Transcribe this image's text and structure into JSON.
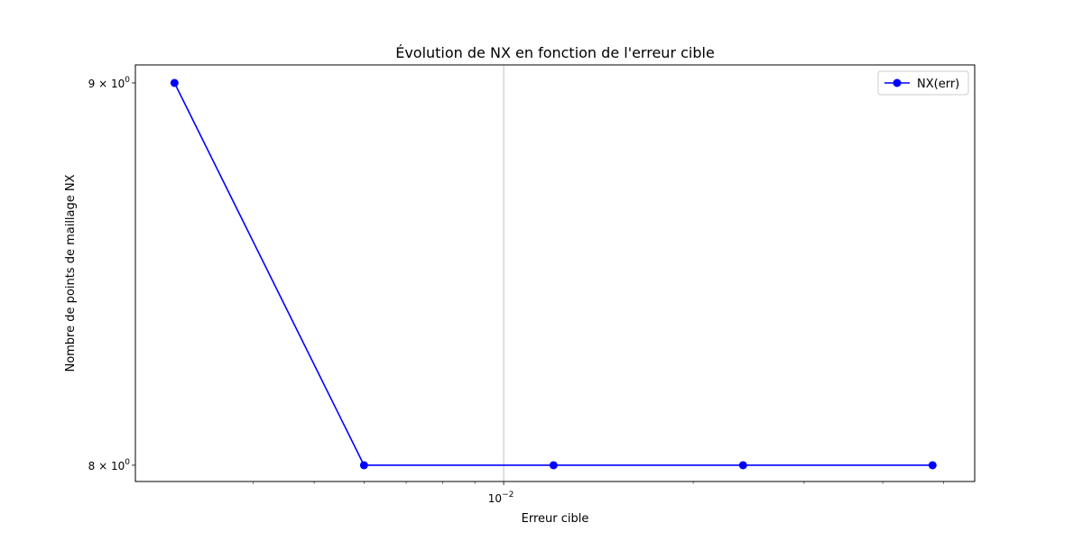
{
  "chart_data": {
    "type": "line",
    "title": "Évolution de NX en fonction de l'erreur cible",
    "xlabel": "Erreur cible",
    "ylabel": "Nombre de points de maillage NX",
    "x_scale": "log",
    "y_scale": "log",
    "xlim": [
      0.0026,
      0.056
    ],
    "ylim": [
      7.96,
      9.05
    ],
    "x_major_ticks": [
      {
        "value": 0.01,
        "label_base": "10",
        "label_exp": "−2"
      }
    ],
    "x_minor_ticks": [
      0.004,
      0.005,
      0.006,
      0.007,
      0.008,
      0.009,
      0.02,
      0.03,
      0.04,
      0.05
    ],
    "y_ticks": [
      {
        "value": 9,
        "label": "9 × 10",
        "label_exp": "0"
      },
      {
        "value": 8,
        "label": "8 × 10",
        "label_exp": "0"
      }
    ],
    "grid": "major x only",
    "legend": {
      "placement": "top-right"
    },
    "color": "#0000ff",
    "series": [
      {
        "name": "NX(err)",
        "marker": "circle",
        "x": [
          0.003,
          0.006,
          0.012,
          0.024,
          0.048
        ],
        "y": [
          9,
          8,
          8,
          8,
          8
        ]
      }
    ]
  }
}
